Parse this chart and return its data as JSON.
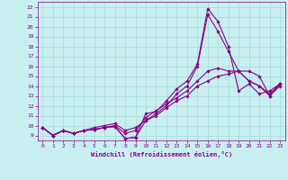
{
  "xlabel": "Windchill (Refroidissement éolien,°C)",
  "bg_color": "#c8f0f0",
  "line_color": "#880088",
  "grid_color": "#a8d8d8",
  "xlim": [
    -0.5,
    23.5
  ],
  "ylim": [
    8.5,
    22.5
  ],
  "xticks": [
    0,
    1,
    2,
    3,
    4,
    5,
    6,
    7,
    8,
    9,
    10,
    11,
    12,
    13,
    14,
    15,
    16,
    17,
    18,
    19,
    20,
    21,
    22,
    23
  ],
  "yticks": [
    9,
    10,
    11,
    12,
    13,
    14,
    15,
    16,
    17,
    18,
    19,
    20,
    21,
    22
  ],
  "series": [
    {
      "x": [
        0,
        1,
        2,
        3,
        4,
        5,
        6,
        7,
        8,
        9,
        10,
        11,
        12,
        13,
        14,
        15,
        16,
        17,
        18,
        19,
        20,
        21,
        22,
        23
      ],
      "y": [
        9.8,
        9.0,
        9.5,
        9.2,
        9.5,
        9.6,
        9.8,
        9.9,
        8.7,
        8.8,
        11.2,
        11.4,
        12.5,
        13.7,
        14.5,
        16.2,
        21.8,
        20.5,
        18.0,
        13.5,
        14.2,
        13.2,
        13.5,
        14.2
      ]
    },
    {
      "x": [
        0,
        1,
        2,
        3,
        4,
        5,
        6,
        7,
        8,
        9,
        10,
        11,
        12,
        13,
        14,
        15,
        16,
        17,
        18,
        19,
        20,
        21,
        22,
        23
      ],
      "y": [
        9.8,
        9.0,
        9.5,
        9.2,
        9.5,
        9.6,
        9.8,
        9.9,
        8.7,
        8.8,
        10.5,
        11.2,
        12.0,
        13.2,
        14.0,
        16.0,
        21.2,
        19.5,
        17.5,
        15.5,
        15.5,
        15.0,
        13.0,
        14.2
      ]
    },
    {
      "x": [
        0,
        1,
        2,
        3,
        4,
        5,
        6,
        7,
        8,
        9,
        10,
        11,
        12,
        13,
        14,
        15,
        16,
        17,
        18,
        19,
        20,
        21,
        22,
        23
      ],
      "y": [
        9.8,
        9.0,
        9.5,
        9.2,
        9.5,
        9.6,
        9.8,
        10.0,
        9.2,
        9.5,
        10.8,
        11.5,
        12.2,
        12.8,
        13.5,
        14.5,
        15.5,
        15.8,
        15.5,
        15.5,
        14.5,
        14.0,
        13.2,
        14.2
      ]
    },
    {
      "x": [
        0,
        1,
        2,
        3,
        4,
        5,
        6,
        7,
        8,
        9,
        10,
        11,
        12,
        13,
        14,
        15,
        16,
        17,
        18,
        19,
        20,
        21,
        22,
        23
      ],
      "y": [
        9.8,
        9.0,
        9.5,
        9.2,
        9.5,
        9.8,
        10.0,
        10.2,
        9.5,
        9.8,
        10.5,
        11.0,
        11.8,
        12.5,
        13.0,
        14.0,
        14.5,
        15.0,
        15.2,
        15.5,
        14.5,
        14.0,
        13.0,
        14.0
      ]
    }
  ],
  "marker": "D",
  "markersize": 1.8,
  "linewidth": 0.8
}
